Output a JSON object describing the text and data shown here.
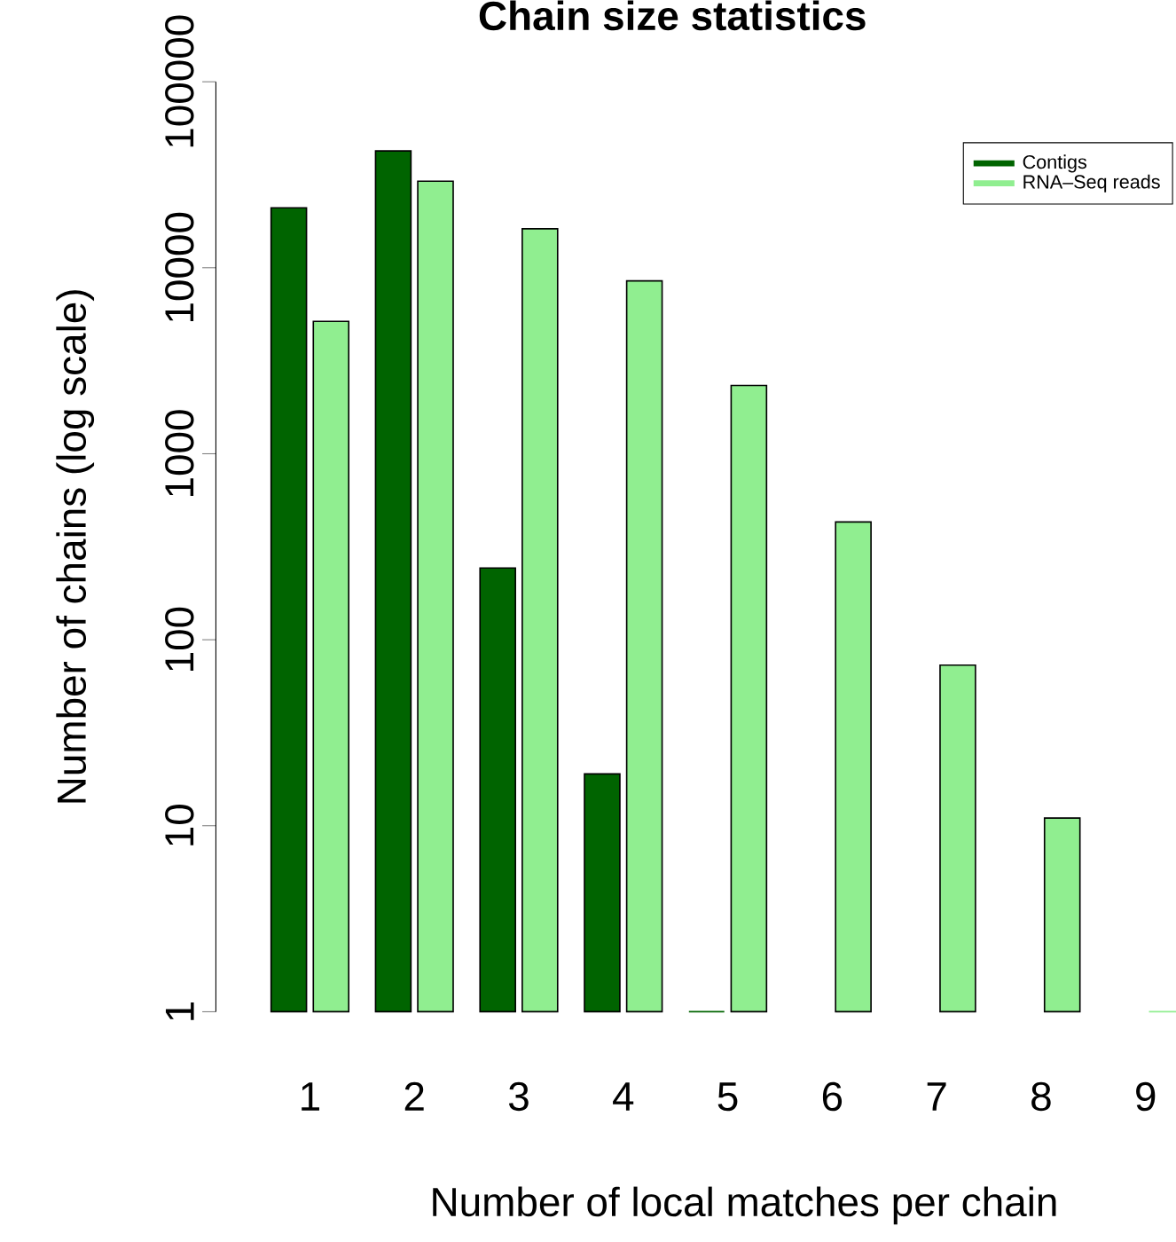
{
  "chart_data": {
    "type": "bar",
    "title": "Chain size statistics",
    "xlabel": "Number of local matches per chain",
    "ylabel": "Number of chains (log scale)",
    "categories": [
      "1",
      "2",
      "3",
      "4",
      "5",
      "6",
      "7",
      "8",
      "9"
    ],
    "series": [
      {
        "name": "Contigs",
        "color": "#006400",
        "values": [
          21000,
          42500,
          243,
          19,
          1,
          null,
          null,
          null,
          null
        ]
      },
      {
        "name": "RNA–Seq reads",
        "color": "#90ee90",
        "values": [
          5150,
          29200,
          16200,
          8500,
          2330,
          430,
          73,
          11,
          1
        ]
      }
    ],
    "log": true,
    "ylim": [
      1,
      100000
    ],
    "yticks": [
      1,
      10,
      100,
      1000,
      10000,
      100000
    ],
    "legend": "top right",
    "grid": false
  }
}
